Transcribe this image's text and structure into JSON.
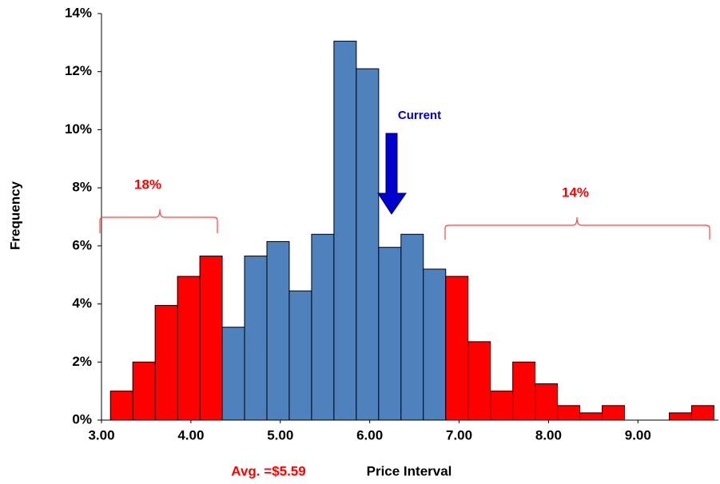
{
  "chart_data": {
    "type": "histogram",
    "x_label": "Price Interval",
    "y_label": "Frequency",
    "bins": [
      3.1,
      3.35,
      3.6,
      3.85,
      4.1,
      4.35,
      4.6,
      4.85,
      5.1,
      5.35,
      5.6,
      5.85,
      6.1,
      6.35,
      6.6,
      6.85,
      7.1,
      7.35,
      7.6,
      7.85,
      8.1,
      8.35,
      8.6,
      8.85,
      9.1,
      9.35,
      9.6,
      9.85
    ],
    "values": [
      1.0,
      2.0,
      3.95,
      4.95,
      5.65,
      3.2,
      5.65,
      6.15,
      4.45,
      6.4,
      13.05,
      12.1,
      5.95,
      6.4,
      5.2,
      4.95,
      2.7,
      1.0,
      2.0,
      1.25,
      0.5,
      0.25,
      0.5,
      0,
      0,
      0.25,
      0.5
    ],
    "colors": [
      "#ff0000",
      "#ff0000",
      "#ff0000",
      "#ff0000",
      "#ff0000",
      "#4f81bd",
      "#4f81bd",
      "#4f81bd",
      "#4f81bd",
      "#4f81bd",
      "#4f81bd",
      "#4f81bd",
      "#4f81bd",
      "#4f81bd",
      "#4f81bd",
      "#ff0000",
      "#ff0000",
      "#ff0000",
      "#ff0000",
      "#ff0000",
      "#ff0000",
      "#ff0000",
      "#ff0000",
      "#ff0000",
      "#ff0000",
      "#ff0000",
      "#ff0000"
    ],
    "xlim": [
      3.0,
      9.9
    ],
    "ylim": [
      0,
      14
    ],
    "xticks": [
      {
        "value": 3,
        "label": "3.00"
      },
      {
        "value": 4,
        "label": "4.00"
      },
      {
        "value": 5,
        "label": "5.00"
      },
      {
        "value": 6,
        "label": "6.00"
      },
      {
        "value": 7,
        "label": "7.00"
      },
      {
        "value": 8,
        "label": "8.00"
      },
      {
        "value": 9,
        "label": "9.00"
      }
    ],
    "yticks": [
      {
        "value": 0,
        "label": "0%"
      },
      {
        "value": 2,
        "label": "2%"
      },
      {
        "value": 4,
        "label": "4%"
      },
      {
        "value": 6,
        "label": "6%"
      },
      {
        "value": 8,
        "label": "8%"
      },
      {
        "value": 10,
        "label": "10%"
      },
      {
        "value": 12,
        "label": "12%"
      },
      {
        "value": 14,
        "label": "14%"
      }
    ],
    "annotations": {
      "left_share": "18%",
      "right_share": "14%",
      "current": "Current",
      "average": "Avg. =$5.59"
    }
  }
}
